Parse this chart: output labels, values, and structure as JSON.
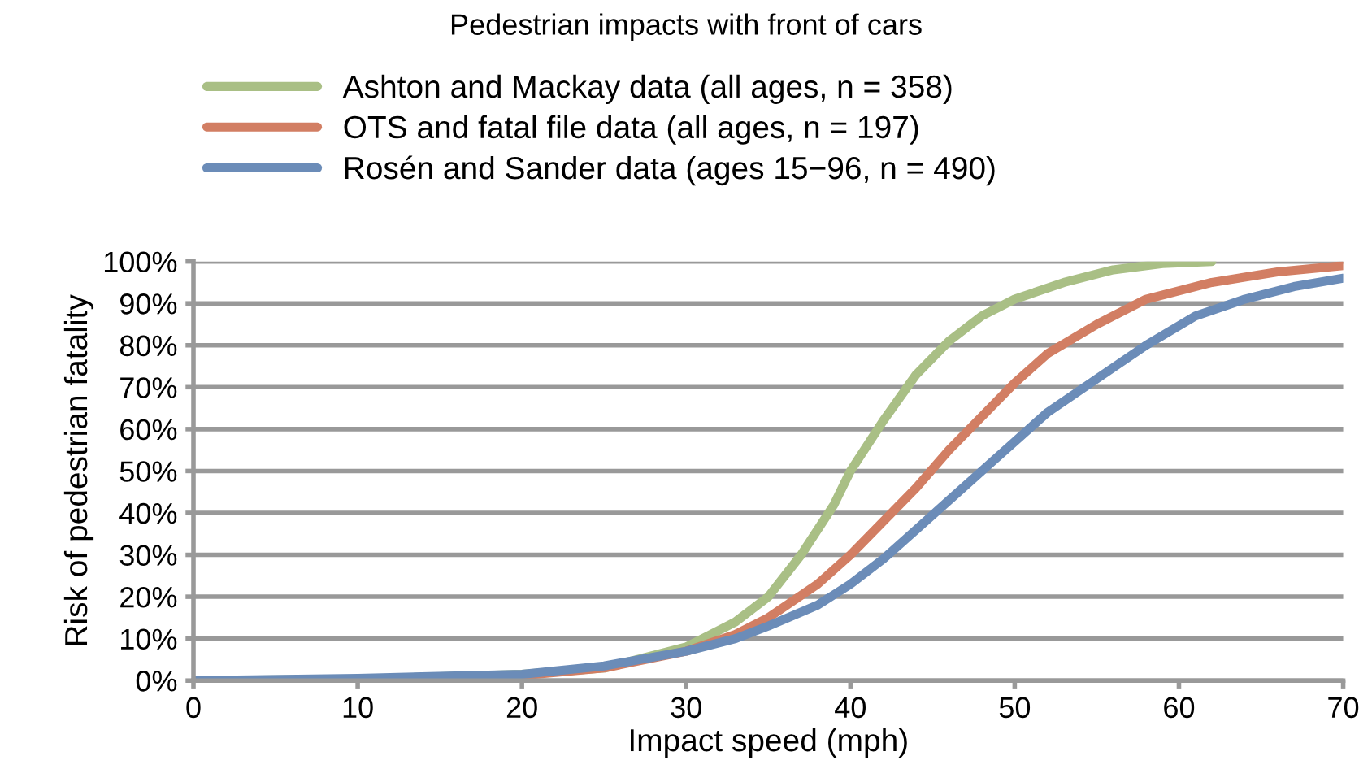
{
  "chart_data": {
    "type": "line",
    "title": "Pedestrian impacts with front of cars",
    "xlabel": "Impact speed (mph)",
    "ylabel": "Risk of pedestrian fatality",
    "xlim": [
      0,
      70
    ],
    "xticks": [
      0,
      10,
      20,
      30,
      40,
      50,
      60,
      70
    ],
    "ylim": [
      0,
      100
    ],
    "yticks": [
      {
        "value": 0,
        "label": "0%"
      },
      {
        "value": 10,
        "label": "10%"
      },
      {
        "value": 20,
        "label": "20%"
      },
      {
        "value": 30,
        "label": "30%"
      },
      {
        "value": 40,
        "label": "40%"
      },
      {
        "value": 50,
        "label": "50%"
      },
      {
        "value": 60,
        "label": "60%"
      },
      {
        "value": 70,
        "label": "70%"
      },
      {
        "value": 80,
        "label": "80%"
      },
      {
        "value": 90,
        "label": "90%"
      },
      {
        "value": 100,
        "label": "100%"
      }
    ],
    "grid": "y",
    "legend": "top",
    "marker": "none",
    "line_style": "solid",
    "series": [
      {
        "name": "Ashton and Mackay data (all ages, n = 358)",
        "color": "#a9bf85",
        "x": [
          0,
          10,
          20,
          25,
          30,
          33,
          35,
          37,
          39,
          40,
          42,
          44,
          46,
          48,
          50,
          53,
          56,
          59,
          62
        ],
        "values": [
          0,
          0.3,
          1.5,
          3,
          8,
          14,
          20,
          30,
          42,
          50,
          62,
          73,
          81,
          87,
          91,
          95,
          98,
          99.5,
          100
        ]
      },
      {
        "name": "OTS and fatal file data (all ages, n = 197)",
        "color": "#d27e63",
        "x": [
          15,
          20,
          25,
          30,
          33,
          35,
          38,
          40,
          42,
          44,
          46,
          48,
          50,
          52,
          55,
          58,
          62,
          66,
          70
        ],
        "values": [
          0.5,
          1.2,
          3,
          7,
          11,
          15,
          23,
          30,
          38,
          46,
          55,
          63,
          71,
          78,
          85,
          91,
          95,
          97.5,
          99
        ]
      },
      {
        "name": "Rosén and Sander data (ages 15−96, n = 490)",
        "color": "#6b8cb8",
        "x": [
          0,
          10,
          20,
          25,
          30,
          33,
          35,
          38,
          40,
          42,
          44,
          46,
          48,
          50,
          52,
          55,
          58,
          61,
          64,
          67,
          70
        ],
        "values": [
          0,
          0.5,
          1.5,
          3.5,
          7,
          10,
          13,
          18,
          23,
          29,
          36,
          43,
          50,
          57,
          64,
          72,
          80,
          87,
          91,
          94,
          96
        ]
      }
    ]
  }
}
